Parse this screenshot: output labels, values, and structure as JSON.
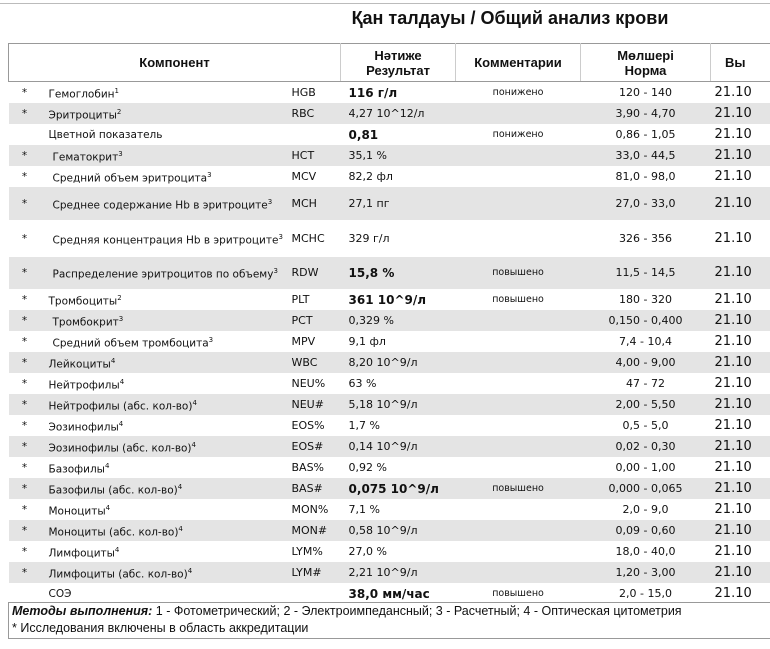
{
  "title": "Қан  талдауы / Общий анализ крови",
  "headers": {
    "component": "Компонент",
    "result_kz": "Нәтиже",
    "result_ru": "Результат",
    "comment": "Комментарии",
    "norm_kz": "Мөлшері",
    "norm_ru": "Норма",
    "date": "Вы"
  },
  "rows": [
    {
      "star": "*",
      "name": "Гемоглобин",
      "sup": "1",
      "code": "HGB",
      "result": "116 г/л",
      "bold": true,
      "comment": "понижено",
      "norm": "120 - 140",
      "date": "21.10"
    },
    {
      "star": "*",
      "name": "Эритроциты",
      "sup": "2",
      "code": "RBC",
      "result": "4,27 10^12/л",
      "bold": false,
      "comment": "",
      "norm": "3,90 - 4,70",
      "date": "21.10"
    },
    {
      "star": "",
      "name": "Цветной показатель",
      "sup": "",
      "code": "",
      "result": "0,81",
      "bold": true,
      "comment": "понижено",
      "norm": "0,86 - 1,05",
      "date": "21.10"
    },
    {
      "star": "*",
      "name": "Гематокрит",
      "sup": "3",
      "code": "HCT",
      "result": "35,1 %",
      "bold": false,
      "comment": "",
      "norm": "33,0 - 44,5",
      "date": "21.10",
      "indent": true
    },
    {
      "star": "*",
      "name": "Средний объем эритроцита",
      "sup": "3",
      "code": "MCV",
      "result": "82,2 фл",
      "bold": false,
      "comment": "",
      "norm": "81,0 - 98,0",
      "date": "21.10",
      "indent": true
    },
    {
      "star": "*",
      "name": "Среднее содержание Hb в эритроците",
      "sup": "3",
      "code": "MCH",
      "result": "27,1 пг",
      "bold": false,
      "comment": "",
      "norm": "27,0 - 33,0",
      "date": "21.10",
      "indent": true,
      "tall": 33
    },
    {
      "star": "*",
      "name": "Средняя концентрация Hb в эритроците",
      "sup": "3",
      "code": "MCHC",
      "result": "329 г/л",
      "bold": false,
      "comment": "",
      "norm": "326 - 356",
      "date": "21.10",
      "indent": true,
      "tall": 37
    },
    {
      "star": "*",
      "name": "Распределение эритроцитов по объему",
      "sup": "3",
      "code": "RDW",
      "result": "15,8 %",
      "bold": true,
      "comment": "повышено",
      "norm": "11,5 - 14,5",
      "date": "21.10",
      "indent": true,
      "tall": 32
    },
    {
      "star": "*",
      "name": "Тромбоциты",
      "sup": "2",
      "code": "PLT",
      "result": "361 10^9/л",
      "bold": true,
      "comment": "повышено",
      "norm": "180 - 320",
      "date": "21.10"
    },
    {
      "star": "*",
      "name": "Тромбокрит",
      "sup": "3",
      "code": "PCT",
      "result": "0,329 %",
      "bold": false,
      "comment": "",
      "norm": "0,150 - 0,400",
      "date": "21.10",
      "indent": true
    },
    {
      "star": "*",
      "name": "Средний объем тромбоцита",
      "sup": "3",
      "code": "MPV",
      "result": "9,1 фл",
      "bold": false,
      "comment": "",
      "norm": "7,4 - 10,4",
      "date": "21.10",
      "indent": true
    },
    {
      "star": "*",
      "name": "Лейкоциты",
      "sup": "4",
      "code": "WBC",
      "result": "8,20 10^9/л",
      "bold": false,
      "comment": "",
      "norm": "4,00 - 9,00",
      "date": "21.10"
    },
    {
      "star": "*",
      "name": "Нейтрофилы",
      "sup": "4",
      "code": "NEU%",
      "result": "63 %",
      "bold": false,
      "comment": "",
      "norm": "47 - 72",
      "date": "21.10"
    },
    {
      "star": "*",
      "name": "Нейтрофилы (абс. кол-во)",
      "sup": "4",
      "code": "NEU#",
      "result": "5,18 10^9/л",
      "bold": false,
      "comment": "",
      "norm": "2,00 - 5,50",
      "date": "21.10"
    },
    {
      "star": "*",
      "name": "Эозинофилы",
      "sup": "4",
      "code": "EOS%",
      "result": "1,7 %",
      "bold": false,
      "comment": "",
      "norm": "0,5 - 5,0",
      "date": "21.10"
    },
    {
      "star": "*",
      "name": "Эозинофилы (абс. кол-во)",
      "sup": "4",
      "code": "EOS#",
      "result": "0,14 10^9/л",
      "bold": false,
      "comment": "",
      "norm": "0,02 - 0,30",
      "date": "21.10"
    },
    {
      "star": "*",
      "name": "Базофилы",
      "sup": "4",
      "code": "BAS%",
      "result": "0,92 %",
      "bold": false,
      "comment": "",
      "norm": "0,00 - 1,00",
      "date": "21.10"
    },
    {
      "star": "*",
      "name": "Базофилы (абс. кол-во)",
      "sup": "4",
      "code": "BAS#",
      "result": "0,075 10^9/л",
      "bold": true,
      "comment": "повышено",
      "norm": "0,000 - 0,065",
      "date": "21.10"
    },
    {
      "star": "*",
      "name": "Моноциты",
      "sup": "4",
      "code": "MON%",
      "result": "7,1 %",
      "bold": false,
      "comment": "",
      "norm": "2,0 - 9,0",
      "date": "21.10"
    },
    {
      "star": "*",
      "name": "Моноциты (абс. кол-во)",
      "sup": "4",
      "code": "MON#",
      "result": "0,58 10^9/л",
      "bold": false,
      "comment": "",
      "norm": "0,09 - 0,60",
      "date": "21.10"
    },
    {
      "star": "*",
      "name": "Лимфоциты",
      "sup": "4",
      "code": "LYM%",
      "result": "27,0 %",
      "bold": false,
      "comment": "",
      "norm": "18,0 - 40,0",
      "date": "21.10"
    },
    {
      "star": "*",
      "name": "Лимфоциты (абс. кол-во)",
      "sup": "4",
      "code": "LYM#",
      "result": "2,21 10^9/л",
      "bold": false,
      "comment": "",
      "norm": "1,20 - 3,00",
      "date": "21.10"
    },
    {
      "star": "",
      "name": "СОЭ",
      "sup": "",
      "code": "",
      "result": "38,0 мм/час",
      "bold": true,
      "comment": "повышено",
      "norm": "2,0 - 15,0",
      "date": "21.10"
    }
  ],
  "footer": {
    "methods_label": "Методы выполнения:",
    "methods_text": " 1 - Фотометрический; 2 - Электроимпедансный; 3 - Расчетный; 4 - Оптическая цитометрия",
    "note": "* Исследования включены в область аккредитации"
  }
}
